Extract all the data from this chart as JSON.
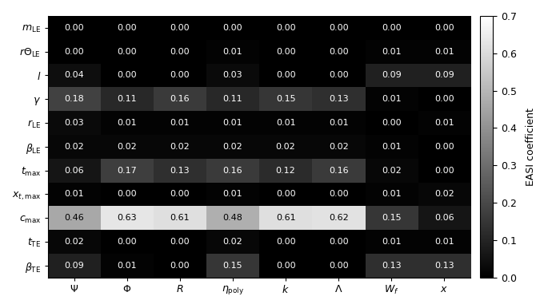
{
  "row_labels": [
    "$m_{\\mathrm{LE}}$",
    "$r\\Theta_{\\mathrm{LE}}$",
    "$l$",
    "$\\gamma$",
    "$r_{\\mathrm{LE}}$",
    "$\\beta_{\\mathrm{LE}}$",
    "$t_{\\mathrm{max}}$",
    "$x_{t,\\mathrm{max}}$",
    "$c_{\\mathrm{max}}$",
    "$t_{\\mathrm{TE}}$",
    "$\\beta_{\\mathrm{TE}}$"
  ],
  "col_labels": [
    "$\\Psi$",
    "$\\Phi$",
    "$R$",
    "$\\eta_{\\mathrm{poly}}$",
    "$k$",
    "$\\Lambda$",
    "$W_f$",
    "$x$"
  ],
  "data": [
    [
      0.0,
      0.0,
      0.0,
      0.0,
      0.0,
      0.0,
      0.0,
      0.0
    ],
    [
      0.0,
      0.0,
      0.0,
      0.01,
      0.0,
      0.0,
      0.01,
      0.01
    ],
    [
      0.04,
      0.0,
      0.0,
      0.03,
      0.0,
      0.0,
      0.09,
      0.09
    ],
    [
      0.18,
      0.11,
      0.16,
      0.11,
      0.15,
      0.13,
      0.01,
      0.0
    ],
    [
      0.03,
      0.01,
      0.01,
      0.01,
      0.01,
      0.01,
      0.0,
      0.01
    ],
    [
      0.02,
      0.02,
      0.02,
      0.02,
      0.02,
      0.02,
      0.01,
      0.0
    ],
    [
      0.06,
      0.17,
      0.13,
      0.16,
      0.12,
      0.16,
      0.02,
      0.0
    ],
    [
      0.01,
      0.0,
      0.0,
      0.01,
      0.0,
      0.0,
      0.01,
      0.02
    ],
    [
      0.46,
      0.63,
      0.61,
      0.48,
      0.61,
      0.62,
      0.15,
      0.06
    ],
    [
      0.02,
      0.0,
      0.0,
      0.02,
      0.0,
      0.0,
      0.01,
      0.01
    ],
    [
      0.09,
      0.01,
      0.0,
      0.15,
      0.0,
      0.0,
      0.13,
      0.13
    ]
  ],
  "vmin": 0.0,
  "vmax": 0.7,
  "colorbar_label": "EASI coefficient",
  "colorbar_ticks": [
    0.0,
    0.1,
    0.2,
    0.3,
    0.4,
    0.5,
    0.6,
    0.7
  ],
  "cmap": "gray",
  "text_color_threshold": 0.35,
  "figsize": [
    6.85,
    3.86
  ],
  "dpi": 100,
  "bg_color": "#f0f0f0",
  "font_size_ticks": 9,
  "font_size_text": 8,
  "font_size_cbar": 9
}
